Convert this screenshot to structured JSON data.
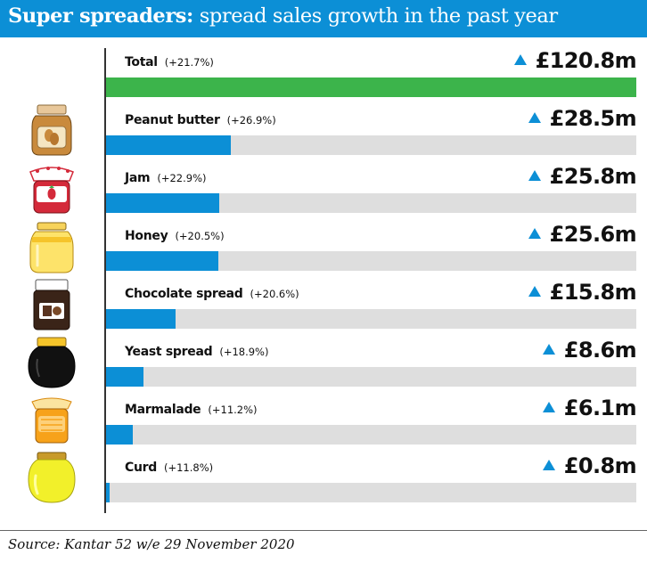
{
  "title": {
    "bold": "Super spreaders:",
    "rest": "spread sales growth in the past year"
  },
  "source": "Source: Kantar 52 w/e 29 November 2020",
  "colors": {
    "title_bg": "#0c8fd6",
    "bar": "#0c8fd6",
    "total_bar": "#3cb44b",
    "track": "#dedede",
    "arrow": "#0c8fd6"
  },
  "icons": [
    "peanut-butter-jar-icon",
    "jam-jar-icon",
    "honey-jar-icon",
    "chocolate-spread-jar-icon",
    "yeast-spread-jar-icon",
    "marmalade-jar-icon",
    "curd-jar-icon"
  ],
  "chart_data": {
    "type": "bar",
    "orientation": "horizontal",
    "unit": "£m",
    "xlim": [
      0,
      120.8
    ],
    "grid": false,
    "categories": [
      "Total",
      "Peanut butter",
      "Jam",
      "Honey",
      "Chocolate spread",
      "Yeast spread",
      "Marmalade",
      "Curd"
    ],
    "values": [
      120.8,
      28.5,
      25.8,
      25.6,
      15.8,
      8.6,
      6.1,
      0.8
    ],
    "growth": [
      "(+21.7%)",
      "(+26.9%)",
      "(+22.9%)",
      "(+20.5%)",
      "(+20.6%)",
      "(+18.9%)",
      "(+11.2%)",
      "(+11.8%)"
    ],
    "value_labels": [
      "£120.8m",
      "£28.5m",
      "£25.8m",
      "£25.6m",
      "£15.8m",
      "£8.6m",
      "£6.1m",
      "£0.8m"
    ]
  }
}
